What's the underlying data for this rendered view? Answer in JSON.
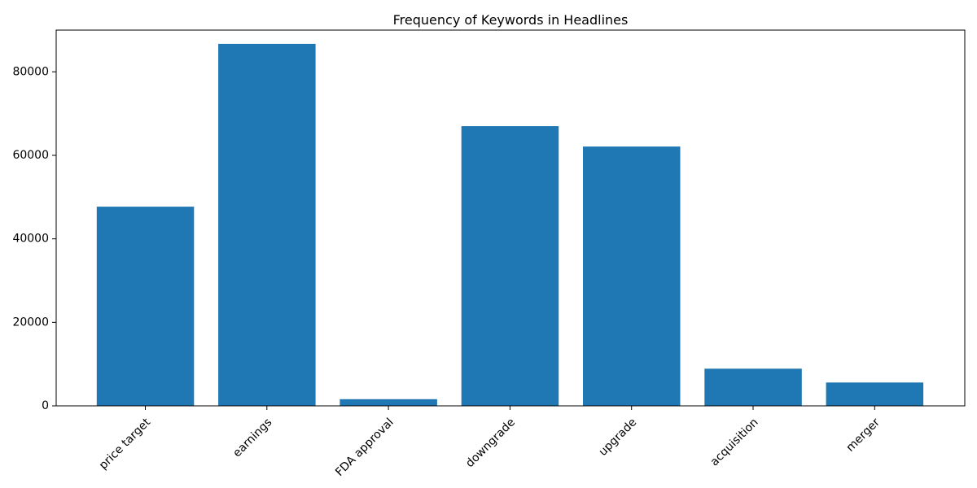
{
  "chart_data": {
    "type": "bar",
    "title": "Frequency of Keywords in Headlines",
    "xlabel": "",
    "ylabel": "",
    "categories": [
      "price target",
      "earnings",
      "FDA approval",
      "downgrade",
      "upgrade",
      "acquisition",
      "merger"
    ],
    "values": [
      47700,
      86700,
      1600,
      67000,
      62100,
      8900,
      5600
    ],
    "ylim": [
      0,
      90000
    ],
    "yticks": [
      0,
      20000,
      40000,
      60000,
      80000
    ],
    "grid": false,
    "bar_color": "#1f77b4"
  }
}
